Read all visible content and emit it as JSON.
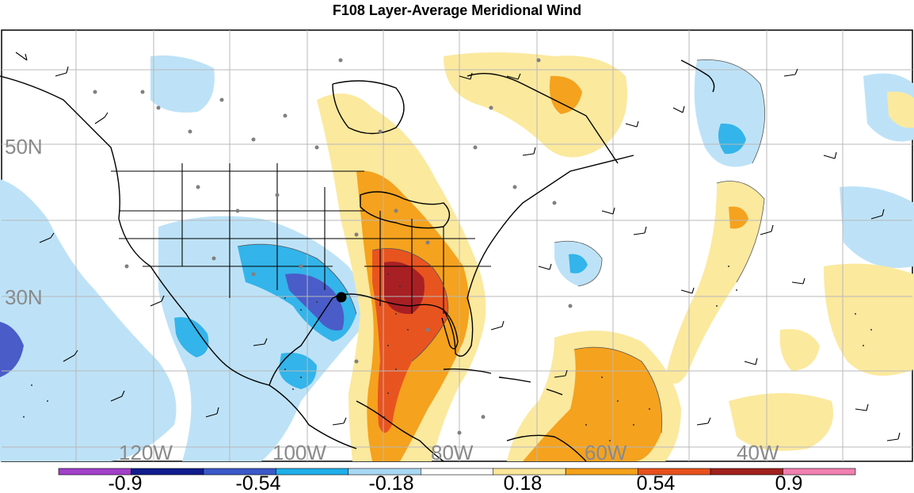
{
  "title": "F108 Layer-Average Meridional Wind",
  "latitude_labels": [
    "50N",
    "30N"
  ],
  "longitude_labels": [
    "120W",
    "100W",
    "80W",
    "60W",
    "40W"
  ],
  "colorbar": {
    "labels": [
      "-0.9",
      "-0.54",
      "-0.18",
      "0.18",
      "0.54",
      "0.9"
    ],
    "colors": [
      "#a040c8",
      "#101c8c",
      "#3a58c8",
      "#1eaee8",
      "#a8d8f4",
      "#ffffff",
      "#fbe79a",
      "#f4a21a",
      "#e8501c",
      "#a0201c",
      "#f080b0"
    ]
  },
  "palette": {
    "neg_light": "#bde2f7",
    "neg_mid": "#33b4ea",
    "neg_strong": "#4a5cc8",
    "pos_light": "#fbe99e",
    "pos_mid": "#f5a21e",
    "pos_strong": "#e85420",
    "pos_max": "#a82024",
    "marker": "#000000"
  }
}
